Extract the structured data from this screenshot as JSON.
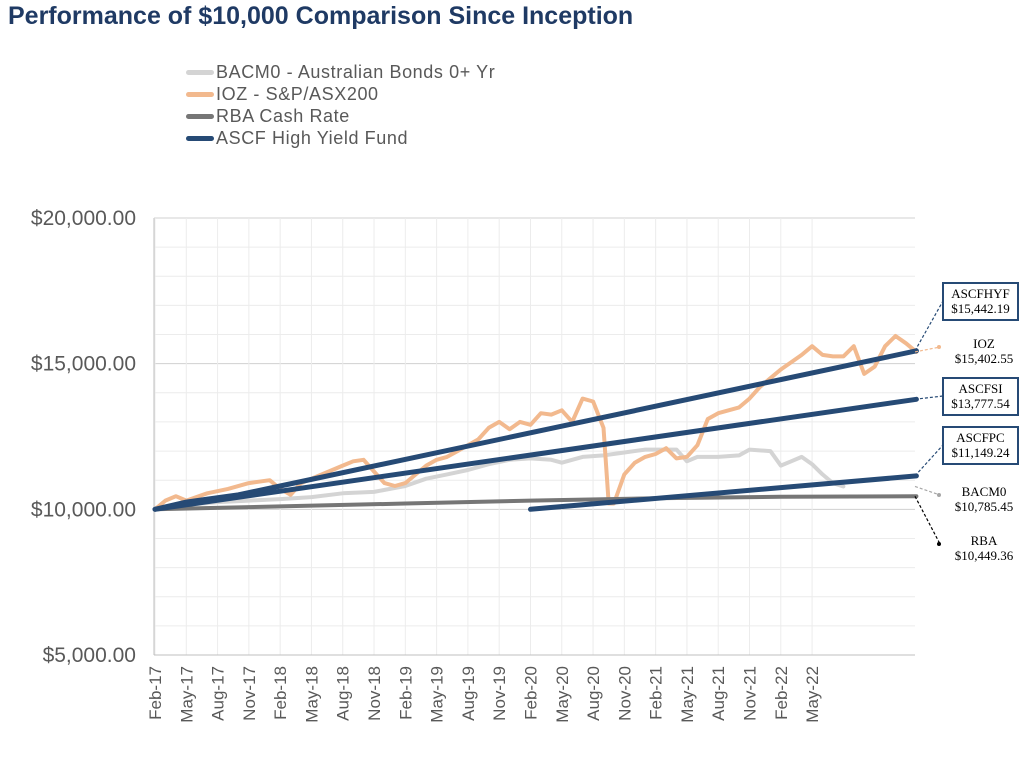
{
  "title": "Performance of $10,000 Comparison Since Inception",
  "colors": {
    "bacm0": "#d4d4d4",
    "ioz": "#f2b98e",
    "rba": "#767676",
    "ascf": "#264a75",
    "grid": "#d9d9d9",
    "axis_text": "#595959"
  },
  "legend": [
    {
      "key": "bacm0",
      "label": "BACM0 - Australian Bonds 0+ Yr"
    },
    {
      "key": "ioz",
      "label": "IOZ - S&P/ASX200"
    },
    {
      "key": "rba",
      "label": "RBA Cash Rate"
    },
    {
      "key": "ascf",
      "label": "ASCF High Yield Fund"
    }
  ],
  "chart_data": {
    "type": "line",
    "yticks": [
      "$20,000.00",
      "$15,000.00",
      "$10,000.00",
      "$5,000.00"
    ],
    "ytick_values": [
      20000,
      15000,
      10000,
      5000
    ],
    "ylim": [
      5000,
      20000
    ],
    "xticks": [
      "Feb-17",
      "May-17",
      "Aug-17",
      "Nov-17",
      "Feb-18",
      "May-18",
      "Aug-18",
      "Nov-18",
      "Feb-19",
      "May-19",
      "Aug-19",
      "Nov-19",
      "Feb-20",
      "May-20",
      "Aug-20",
      "Nov-20",
      "Feb-21",
      "May-21",
      "Aug-21",
      "Nov-21",
      "Feb-22",
      "May-22"
    ],
    "xlim_months": [
      0,
      63
    ],
    "grid": true,
    "series": [
      {
        "key": "bacm0",
        "name": "BACM0 - Australian Bonds 0+ Yr",
        "points": [
          [
            0,
            10000
          ],
          [
            3,
            10150
          ],
          [
            6,
            10250
          ],
          [
            9,
            10300
          ],
          [
            12,
            10350
          ],
          [
            15,
            10420
          ],
          [
            18,
            10550
          ],
          [
            21,
            10600
          ],
          [
            24,
            10800
          ],
          [
            26,
            11050
          ],
          [
            28,
            11200
          ],
          [
            30,
            11350
          ],
          [
            32,
            11550
          ],
          [
            34,
            11700
          ],
          [
            36,
            11750
          ],
          [
            38,
            11700
          ],
          [
            39,
            11600
          ],
          [
            41,
            11800
          ],
          [
            43,
            11850
          ],
          [
            45,
            11950
          ],
          [
            47,
            12050
          ],
          [
            50,
            12050
          ],
          [
            51,
            11650
          ],
          [
            52,
            11800
          ],
          [
            54,
            11800
          ],
          [
            56,
            11850
          ],
          [
            57,
            12050
          ],
          [
            59,
            12000
          ],
          [
            60,
            11500
          ],
          [
            61,
            11650
          ],
          [
            62,
            11800
          ],
          [
            63,
            11550
          ],
          [
            64,
            11200
          ],
          [
            65,
            10900
          ],
          [
            66,
            10785
          ]
        ]
      },
      {
        "key": "ioz",
        "name": "IOZ - S&P/ASX200",
        "points": [
          [
            0,
            10000
          ],
          [
            1,
            10300
          ],
          [
            2,
            10450
          ],
          [
            3,
            10300
          ],
          [
            5,
            10550
          ],
          [
            7,
            10700
          ],
          [
            9,
            10900
          ],
          [
            11,
            11000
          ],
          [
            12,
            10700
          ],
          [
            13,
            10500
          ],
          [
            14,
            10900
          ],
          [
            16,
            11200
          ],
          [
            18,
            11500
          ],
          [
            19,
            11650
          ],
          [
            20,
            11700
          ],
          [
            21,
            11300
          ],
          [
            22,
            10900
          ],
          [
            23,
            10800
          ],
          [
            24,
            10900
          ],
          [
            26,
            11500
          ],
          [
            27,
            11700
          ],
          [
            28,
            11800
          ],
          [
            29,
            12000
          ],
          [
            31,
            12400
          ],
          [
            32,
            12800
          ],
          [
            33,
            13000
          ],
          [
            34,
            12750
          ],
          [
            35,
            13000
          ],
          [
            36,
            12900
          ],
          [
            37,
            13300
          ],
          [
            38,
            13250
          ],
          [
            39,
            13400
          ],
          [
            40,
            13000
          ],
          [
            41,
            13800
          ],
          [
            42,
            13700
          ],
          [
            43,
            12800
          ],
          [
            43.5,
            10200
          ],
          [
            44,
            10200
          ],
          [
            45,
            11200
          ],
          [
            46,
            11600
          ],
          [
            47,
            11800
          ],
          [
            48,
            11900
          ],
          [
            49,
            12100
          ],
          [
            50,
            11750
          ],
          [
            51,
            11800
          ],
          [
            52,
            12200
          ],
          [
            53,
            13100
          ],
          [
            54,
            13300
          ],
          [
            55,
            13400
          ],
          [
            56,
            13500
          ],
          [
            57,
            13800
          ],
          [
            58,
            14200
          ],
          [
            59,
            14500
          ],
          [
            60,
            14800
          ],
          [
            61,
            15050
          ],
          [
            62,
            15300
          ],
          [
            63,
            15600
          ],
          [
            64,
            15300
          ],
          [
            65,
            15250
          ],
          [
            66,
            15250
          ],
          [
            67,
            15600
          ],
          [
            68,
            14650
          ],
          [
            69,
            14900
          ],
          [
            70,
            15600
          ],
          [
            71,
            15950
          ],
          [
            72,
            15700
          ],
          [
            73,
            15403
          ]
        ]
      },
      {
        "key": "rba",
        "name": "RBA Cash Rate",
        "points": [
          [
            0,
            10000
          ],
          [
            12,
            10100
          ],
          [
            24,
            10200
          ],
          [
            36,
            10300
          ],
          [
            48,
            10380
          ],
          [
            60,
            10430
          ],
          [
            73,
            10449
          ]
        ]
      },
      {
        "key": "ascf",
        "name": "ASCFHYF",
        "points": [
          [
            0,
            10000
          ],
          [
            3,
            10250
          ],
          [
            6,
            10400
          ],
          [
            8,
            10500
          ],
          [
            12,
            10800
          ],
          [
            73,
            15442
          ]
        ]
      },
      {
        "key": "ascf",
        "name": "ASCFSI",
        "points": [
          [
            0,
            10000
          ],
          [
            73,
            13778
          ]
        ]
      },
      {
        "key": "ascf",
        "name": "ASCFPC",
        "points": [
          [
            36,
            10000
          ],
          [
            73,
            11149
          ]
        ]
      }
    ],
    "end_labels": [
      {
        "name": "ASCFHYF",
        "value": "$15,442.19",
        "boxed": true
      },
      {
        "name": "IOZ",
        "value": "$15,402.55",
        "boxed": false
      },
      {
        "name": "ASCFSI",
        "value": "$13,777.54",
        "boxed": true
      },
      {
        "name": "ASCFPC",
        "value": "$11,149.24",
        "boxed": true
      },
      {
        "name": "BACM0",
        "value": "$10,785.45",
        "boxed": false
      },
      {
        "name": "RBA",
        "value": "$10,449.36",
        "boxed": false
      }
    ]
  }
}
